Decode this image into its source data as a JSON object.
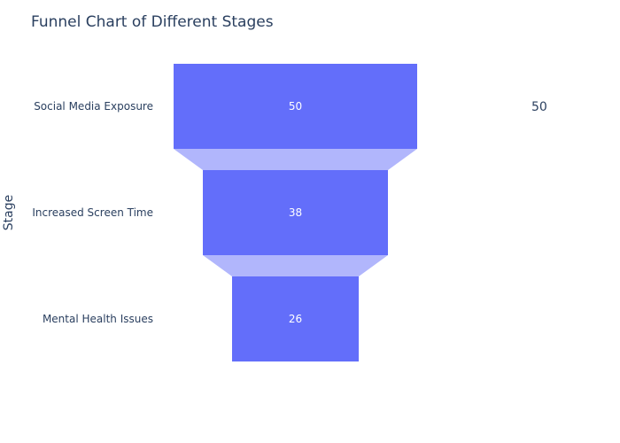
{
  "chart_data": {
    "type": "funnel",
    "title": "Funnel Chart of Different Stages",
    "ylabel": "Stage",
    "categories": [
      "Social Media Exposure",
      "Increased Screen Time",
      "Mental Health Issues"
    ],
    "values": [
      50,
      38,
      26
    ],
    "max_value": 50,
    "legend_value": "50",
    "colors": {
      "bar": "#636efa",
      "connector": "#b1b6fc",
      "text": "#2a3f5f"
    }
  }
}
